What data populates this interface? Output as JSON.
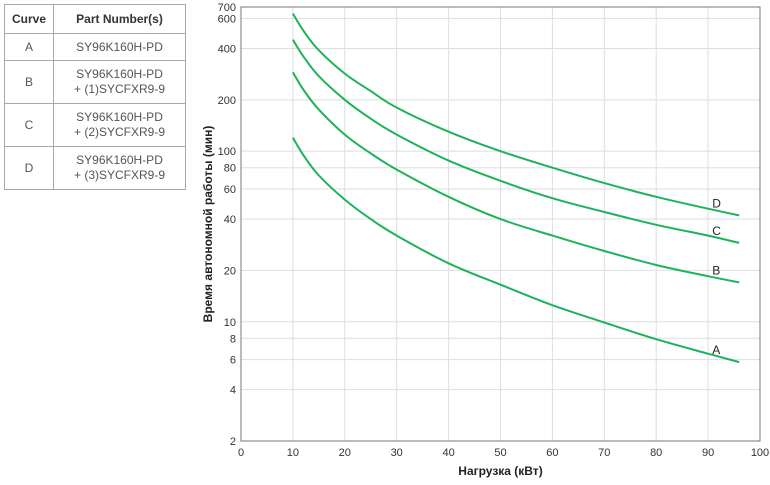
{
  "legend": {
    "headers": [
      "Curve",
      "Part Number(s)"
    ],
    "rows": [
      {
        "curve": "A",
        "lines": [
          "SY96K160H-PD"
        ]
      },
      {
        "curve": "B",
        "lines": [
          "SY96K160H-PD",
          "+ (1)SYCFXR9-9"
        ]
      },
      {
        "curve": "C",
        "lines": [
          "SY96K160H-PD",
          "+ (2)SYCFXR9-9"
        ]
      },
      {
        "curve": "D",
        "lines": [
          "SY96K160H-PD",
          "+ (3)SYCFXR9-9"
        ]
      }
    ]
  },
  "chart_data": {
    "type": "line",
    "xlabel": "Нагрузка (кВт)",
    "ylabel": "Время автономной работы (мин)",
    "xlim": [
      0,
      100
    ],
    "ylim": [
      2,
      700
    ],
    "yscale": "log",
    "xticks": [
      0,
      10,
      20,
      30,
      40,
      50,
      60,
      70,
      80,
      90,
      100
    ],
    "yticks": [
      2,
      4,
      6,
      8,
      10,
      20,
      40,
      60,
      80,
      100,
      200,
      400,
      600,
      700
    ],
    "grid": true,
    "line_color": "#1db35a",
    "series": [
      {
        "name": "A",
        "x": [
          10,
          12,
          15,
          20,
          25,
          30,
          40,
          50,
          60,
          70,
          80,
          90,
          96
        ],
        "y": [
          120,
          95,
          72,
          52,
          40,
          32,
          22,
          16.5,
          12.5,
          9.9,
          7.9,
          6.5,
          5.8
        ]
      },
      {
        "name": "B",
        "x": [
          10,
          12,
          15,
          20,
          25,
          30,
          40,
          50,
          60,
          70,
          80,
          90,
          96
        ],
        "y": [
          290,
          230,
          175,
          125,
          97,
          78,
          54,
          40,
          32,
          26,
          21.5,
          18.5,
          17
        ]
      },
      {
        "name": "C",
        "x": [
          10,
          12,
          15,
          20,
          25,
          30,
          40,
          50,
          60,
          70,
          80,
          90,
          96
        ],
        "y": [
          450,
          360,
          275,
          200,
          155,
          125,
          88,
          67,
          53,
          44,
          37,
          32,
          29
        ]
      },
      {
        "name": "D",
        "x": [
          10,
          12,
          15,
          20,
          25,
          30,
          40,
          50,
          60,
          70,
          80,
          90,
          96
        ],
        "y": [
          640,
          510,
          390,
          285,
          225,
          180,
          130,
          100,
          80,
          65,
          54,
          46,
          42
        ]
      }
    ]
  }
}
